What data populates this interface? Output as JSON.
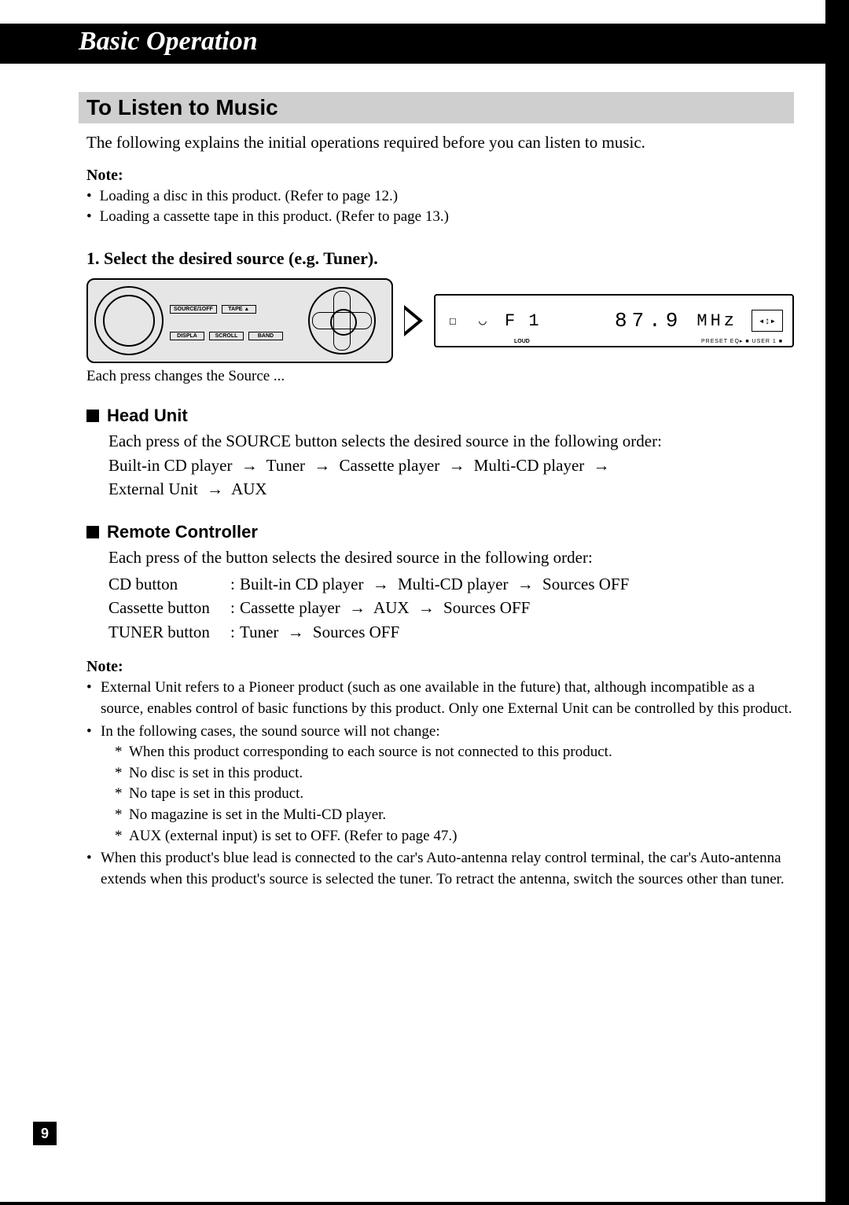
{
  "chapter_title": "Basic Operation",
  "section_title": "To Listen to Music",
  "intro": "The following explains the initial operations required before you can listen to music.",
  "note1_label": "Note:",
  "note1_items": [
    "Loading a disc in this product. (Refer to page 12.)",
    "Loading a cassette tape in this product. (Refer to page 13.)"
  ],
  "step1": "1.  Select the desired source (e.g. Tuner).",
  "panel_buttons_row1": [
    "SOURCE/1OFF",
    "TAPE ▲"
  ],
  "panel_buttons_row2": [
    "DISPLA",
    "SCROLL",
    "BAND"
  ],
  "display": {
    "label": "F 1",
    "freq": "87.9",
    "unit": "MHz",
    "loud": "LOUD",
    "sub": "PRESET EQ▸ ■ USER 1 ■"
  },
  "caption": "Each press changes the Source ...",
  "head_unit": {
    "title": "Head Unit",
    "line1": "Each press of the SOURCE button selects the desired source in the following order:",
    "seq": [
      "Built-in CD player",
      "Tuner",
      "Cassette player",
      "Multi-CD player",
      "External Unit",
      "AUX"
    ]
  },
  "remote": {
    "title": "Remote Controller",
    "line1": "Each press of the button selects the desired source in the following order:",
    "rows": [
      {
        "key": "CD button",
        "seq": [
          "Built-in CD player",
          "Multi-CD player",
          "Sources OFF"
        ]
      },
      {
        "key": "Cassette button",
        "seq": [
          "Cassette player",
          "AUX",
          "Sources OFF"
        ]
      },
      {
        "key": "TUNER button",
        "seq": [
          "Tuner",
          "Sources OFF"
        ]
      }
    ]
  },
  "note2_label": "Note:",
  "note2_items": [
    {
      "text": "External Unit refers to a Pioneer product (such as one available in the future) that, although incompatible as a source, enables control of basic functions by this product. Only one External Unit can be controlled by this product."
    },
    {
      "text": "In the following cases, the sound source will not change:",
      "sub": [
        "When this product corresponding to each source is not connected to this product.",
        "No disc is set in this product.",
        "No tape is set in this product.",
        "No magazine is set in the Multi-CD player.",
        "AUX (external input) is set to OFF. (Refer to page 47.)"
      ]
    },
    {
      "text": "When this product's blue lead is connected to the car's Auto-antenna relay control terminal, the car's Auto-antenna extends when this product's source is selected the tuner. To retract the antenna, switch the sources other than tuner."
    }
  ],
  "page_number": "9",
  "arrow": "→"
}
